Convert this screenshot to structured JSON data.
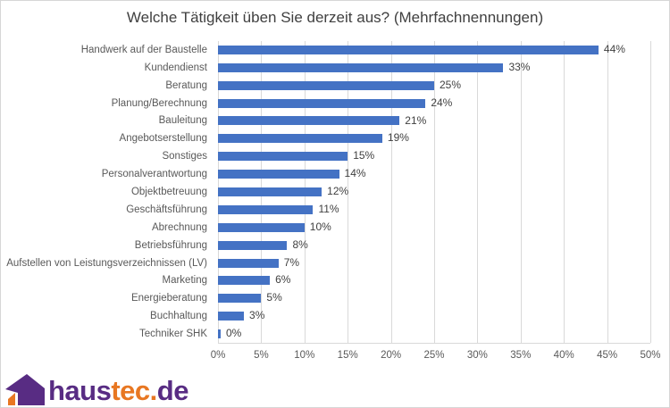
{
  "chart_data": {
    "type": "bar",
    "orientation": "horizontal",
    "title": "Welche Tätigkeit üben Sie derzeit aus? (Mehrfachnennungen)",
    "categories": [
      "Handwerk auf der Baustelle",
      "Kundendienst",
      "Beratung",
      "Planung/Berechnung",
      "Bauleitung",
      "Angebotserstellung",
      "Sonstiges",
      "Personalverantwortung",
      "Objektbetreuung",
      "Geschäftsführung",
      "Abrechnung",
      "Betriebsführung",
      "Aufstellen von Leistungsverzeichnissen (LV)",
      "Marketing",
      "Energieberatung",
      "Buchhaltung",
      "Techniker SHK"
    ],
    "values": [
      44,
      33,
      25,
      24,
      21,
      19,
      15,
      14,
      12,
      11,
      10,
      8,
      7,
      6,
      5,
      3,
      0
    ],
    "value_labels": [
      "44%",
      "33%",
      "25%",
      "24%",
      "21%",
      "19%",
      "15%",
      "14%",
      "12%",
      "11%",
      "10%",
      "8%",
      "7%",
      "6%",
      "5%",
      "3%",
      "0%"
    ],
    "x_ticks": [
      "0%",
      "5%",
      "10%",
      "15%",
      "20%",
      "25%",
      "30%",
      "35%",
      "40%",
      "45%",
      "50%"
    ],
    "xlim": [
      0,
      50
    ],
    "grid": "vertical",
    "legend": "none",
    "bar_color": "#4472c4",
    "gridline_color": "#d9d9d9",
    "label_color": "#595959",
    "value_label_color": "#404040"
  },
  "logo": {
    "name": "haustec.de",
    "icon": "house-icon",
    "purple": "#582c83",
    "orange": "#e87722",
    "text_parts": [
      {
        "text": "haus",
        "color": "#582c83"
      },
      {
        "text": "tec",
        "color": "#e87722"
      },
      {
        "text": ".",
        "color": "#e87722"
      },
      {
        "text": "de",
        "color": "#582c83"
      }
    ]
  }
}
